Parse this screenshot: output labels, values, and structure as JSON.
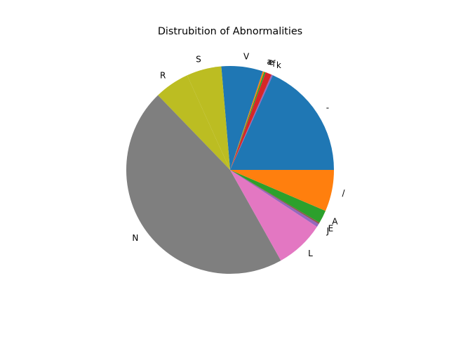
{
  "chart_data": {
    "type": "pie",
    "title": "Distrubition of Abnormalities",
    "categories": [
      "-",
      "k",
      "f",
      "e",
      "a",
      "V",
      "S",
      "R",
      "N",
      "L",
      "J",
      "E",
      "A",
      "/"
    ],
    "values": [
      19.8,
      0.25,
      1.05,
      0.25,
      0.25,
      7.0,
      5.9,
      5.9,
      49.8,
      8.3,
      0.55,
      0.25,
      2.2,
      7.0
    ],
    "colors": [
      "#1f77b4",
      "#9467bd",
      "#d62728",
      "#2ca02c",
      "#ff7f0e",
      "#1f77b4",
      "#bcbd22",
      "#bcbd22",
      "#7f7f7f",
      "#e377c2",
      "#9467bd",
      "#8c564b",
      "#2ca02c",
      "#ff7f0e"
    ],
    "start_angle_deg": 0,
    "direction": "counterclockwise"
  }
}
